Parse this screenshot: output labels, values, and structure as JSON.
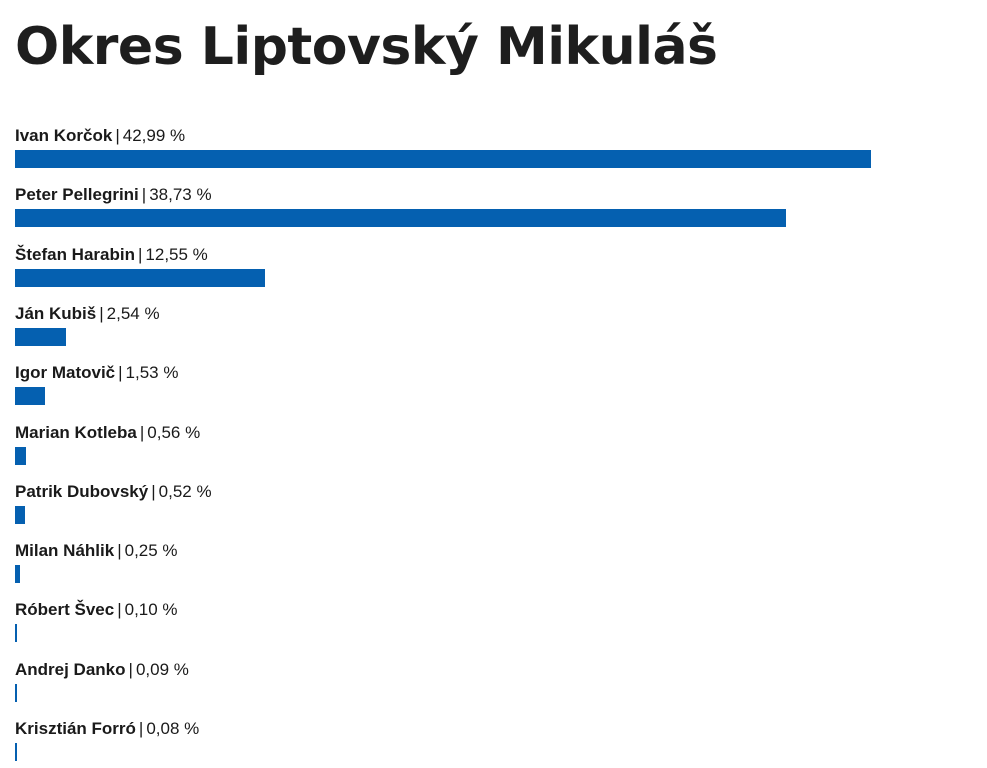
{
  "chart_data": {
    "type": "bar",
    "orientation": "horizontal",
    "title": "Okres Liptovský Mikuláš",
    "categories": [
      "Ivan Korčok",
      "Peter Pellegrini",
      "Štefan Harabin",
      "Ján Kubiš",
      "Igor Matovič",
      "Marian Kotleba",
      "Patrik Dubovský",
      "Milan Náhlik",
      "Róbert Švec",
      "Andrej Danko",
      "Krisztián Forró"
    ],
    "values": [
      42.99,
      38.73,
      12.55,
      2.54,
      1.53,
      0.56,
      0.52,
      0.25,
      0.1,
      0.09,
      0.08
    ],
    "value_labels": [
      "42,99 %",
      "38,73 %",
      "12,55 %",
      "2,54 %",
      "1,53 %",
      "0,56 %",
      "0,52 %",
      "0,25 %",
      "0,10 %",
      "0,09 %",
      "0,08 %"
    ],
    "separator": "|",
    "xlim": [
      0,
      48.2
    ],
    "bar_color": "#0560b0",
    "grid": false,
    "legend": "none"
  }
}
